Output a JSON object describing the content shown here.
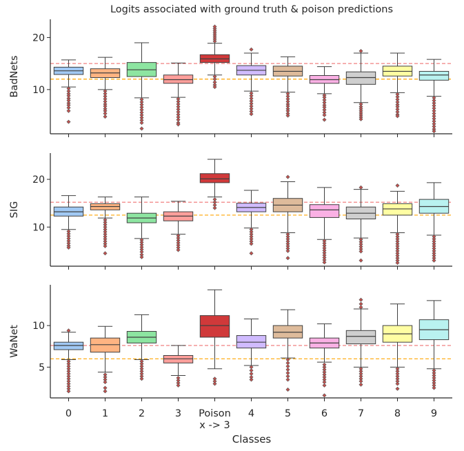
{
  "chart_data": {
    "type": "boxplot",
    "title": "Logits associated with ground truth & poison predictions",
    "xlabel": "Classes",
    "categories": [
      "0",
      "1",
      "2",
      "3",
      "Poison\nx -> 3",
      "4",
      "5",
      "6",
      "7",
      "8",
      "9"
    ],
    "colors": [
      "#a1c9f4",
      "#ffb482",
      "#8de5a1",
      "#ff9f9b",
      "#d0393a",
      "#d0bbff",
      "#debb9b",
      "#fab0e4",
      "#cfcfcf",
      "#fffea3",
      "#b9f2f0"
    ],
    "reference_line_colors": {
      "red": "#f08080",
      "orange": "#ffa500"
    },
    "panels": [
      {
        "ylabel": "BadNets",
        "ylim": [
          1.5,
          23.5
        ],
        "yticks": [
          10,
          20
        ],
        "red_line": 15.0,
        "orange_line": 12.0,
        "boxes": [
          {
            "q1": 12.9,
            "median": 13.6,
            "q3": 14.3,
            "whisker_low": 10.5,
            "whisker_high": 15.7,
            "fliers": [
              10.2,
              9.7,
              9.2,
              8.8,
              8.3,
              7.9,
              7.4,
              7.0,
              6.5,
              5.9,
              3.8
            ]
          },
          {
            "q1": 12.3,
            "median": 13.2,
            "q3": 14.0,
            "whisker_low": 10.0,
            "whisker_high": 16.2,
            "fliers": [
              9.7,
              9.2,
              8.7,
              8.2,
              7.7,
              7.2,
              6.8,
              6.3,
              5.9,
              5.4,
              4.8
            ]
          },
          {
            "q1": 12.5,
            "median": 13.8,
            "q3": 15.2,
            "whisker_low": 8.4,
            "whisker_high": 19.0,
            "fliers": [
              8.1,
              7.6,
              7.1,
              6.6,
              6.1,
              5.6,
              5.1,
              4.6,
              4.1,
              3.6,
              2.5
            ]
          },
          {
            "q1": 11.2,
            "median": 11.9,
            "q3": 12.8,
            "whisker_low": 8.5,
            "whisker_high": 15.1,
            "fliers": [
              8.2,
              7.7,
              7.2,
              6.7,
              6.2,
              5.7,
              5.2,
              4.7,
              4.2,
              3.6,
              3.3
            ]
          },
          {
            "q1": 15.2,
            "median": 15.9,
            "q3": 16.7,
            "whisker_low": 12.8,
            "whisker_high": 18.9,
            "fliers": [
              19.3,
              19.7,
              20.1,
              20.5,
              20.9,
              21.3,
              21.7,
              22.1,
              12.5,
              12.0,
              11.4,
              10.9,
              10.5
            ]
          },
          {
            "q1": 12.8,
            "median": 13.7,
            "q3": 14.6,
            "whisker_low": 9.7,
            "whisker_high": 17.0,
            "fliers": [
              17.7,
              9.3,
              8.8,
              8.3,
              7.8,
              7.3,
              6.8,
              6.3,
              5.8,
              5.3
            ]
          },
          {
            "q1": 12.6,
            "median": 13.5,
            "q3": 14.5,
            "whisker_low": 9.5,
            "whisker_high": 16.3,
            "fliers": [
              9.2,
              8.7,
              8.2,
              7.7,
              7.2,
              6.8,
              6.3,
              5.9,
              5.4,
              5.0
            ]
          },
          {
            "q1": 11.2,
            "median": 11.9,
            "q3": 12.7,
            "whisker_low": 9.2,
            "whisker_high": 14.4,
            "fliers": [
              8.9,
              8.5,
              8.0,
              7.5,
              7.0,
              6.6,
              6.1,
              5.6,
              5.1,
              4.2
            ]
          },
          {
            "q1": 11.0,
            "median": 12.3,
            "q3": 13.4,
            "whisker_low": 7.5,
            "whisker_high": 17.0,
            "fliers": [
              17.4,
              7.2,
              6.7,
              6.3,
              5.9,
              5.5,
              5.1,
              4.7,
              4.3
            ]
          },
          {
            "q1": 12.6,
            "median": 13.5,
            "q3": 14.5,
            "whisker_low": 9.4,
            "whisker_high": 17.0,
            "fliers": [
              9.1,
              8.6,
              8.1,
              7.6,
              7.1,
              6.7,
              6.2,
              5.7,
              5.2,
              4.9
            ]
          },
          {
            "q1": 11.8,
            "median": 12.8,
            "q3": 13.5,
            "whisker_low": 8.7,
            "whisker_high": 15.8,
            "fliers": [
              8.4,
              7.9,
              7.4,
              6.9,
              6.4,
              5.9,
              5.4,
              4.9,
              4.4,
              3.9,
              3.4,
              2.9,
              2.4,
              2.0
            ]
          }
        ]
      },
      {
        "ylabel": "SIG",
        "ylim": [
          1.8,
          25.5
        ],
        "yticks": [
          10,
          20
        ],
        "red_line": 15.2,
        "orange_line": 12.5,
        "boxes": [
          {
            "q1": 12.3,
            "median": 13.2,
            "q3": 14.2,
            "whisker_low": 9.5,
            "whisker_high": 16.6,
            "fliers": [
              9.1,
              8.6,
              8.1,
              7.6,
              7.1,
              6.6,
              6.1,
              5.7
            ]
          },
          {
            "q1": 13.6,
            "median": 14.3,
            "q3": 14.9,
            "whisker_low": 11.9,
            "whisker_high": 16.3,
            "fliers": [
              11.5,
              11.0,
              10.5,
              10.0,
              9.5,
              9.0,
              8.5,
              8.0,
              7.5,
              7.0,
              6.5,
              6.0,
              4.5
            ]
          },
          {
            "q1": 10.9,
            "median": 11.9,
            "q3": 12.9,
            "whisker_low": 7.6,
            "whisker_high": 16.3,
            "fliers": [
              7.3,
              6.8,
              6.3,
              5.8,
              5.3,
              4.8,
              4.2,
              3.7
            ]
          },
          {
            "q1": 11.3,
            "median": 12.3,
            "q3": 13.2,
            "whisker_low": 8.5,
            "whisker_high": 15.4,
            "fliers": [
              8.2,
              7.7,
              7.2,
              6.7,
              6.2,
              5.7,
              5.2
            ]
          },
          {
            "q1": 19.3,
            "median": 20.1,
            "q3": 21.2,
            "whisker_low": 16.3,
            "whisker_high": 24.2,
            "fliers": [
              15.8,
              15.2,
              14.6,
              14.0
            ]
          },
          {
            "q1": 13.2,
            "median": 14.1,
            "q3": 15.0,
            "whisker_low": 9.8,
            "whisker_high": 17.7,
            "fliers": [
              9.5,
              9.0,
              8.5,
              8.0,
              7.5,
              7.0,
              6.5,
              4.5
            ]
          },
          {
            "q1": 13.2,
            "median": 14.6,
            "q3": 16.0,
            "whisker_low": 8.8,
            "whisker_high": 19.5,
            "fliers": [
              20.5,
              8.5,
              8.0,
              7.5,
              7.0,
              6.5,
              6.0,
              5.5,
              5.0,
              3.5
            ]
          },
          {
            "q1": 12.0,
            "median": 13.6,
            "q3": 14.7,
            "whisker_low": 7.4,
            "whisker_high": 18.3,
            "fliers": [
              7.1,
              6.6,
              6.1,
              5.6,
              5.1,
              4.6,
              4.1,
              3.6,
              3.1,
              2.6
            ]
          },
          {
            "q1": 11.7,
            "median": 12.9,
            "q3": 14.2,
            "whisker_low": 7.7,
            "whisker_high": 17.9,
            "fliers": [
              18.3,
              7.4,
              6.9,
              6.4,
              5.9,
              5.4,
              4.9,
              3.0
            ]
          },
          {
            "q1": 12.5,
            "median": 13.8,
            "q3": 14.9,
            "whisker_low": 8.8,
            "whisker_high": 17.5,
            "fliers": [
              18.7,
              8.5,
              8.0,
              7.5,
              7.0,
              6.5,
              6.0,
              5.5,
              5.0,
              4.5,
              4.0,
              3.5,
              3.0,
              2.5
            ]
          },
          {
            "q1": 12.9,
            "median": 14.3,
            "q3": 15.8,
            "whisker_low": 8.3,
            "whisker_high": 19.3,
            "fliers": [
              8.0,
              7.5,
              7.0,
              6.5,
              6.0,
              5.5,
              5.0,
              4.5,
              4.0,
              3.5,
              3.0
            ]
          }
        ]
      },
      {
        "ylabel": "WaNet",
        "ylim": [
          1.3,
          14.9
        ],
        "yticks": [
          5,
          10
        ],
        "red_line": 7.6,
        "orange_line": 6.0,
        "boxes": [
          {
            "q1": 7.1,
            "median": 7.6,
            "q3": 8.0,
            "whisker_low": 5.9,
            "whisker_high": 9.2,
            "fliers": [
              9.4,
              5.7,
              5.4,
              5.1,
              4.8,
              4.5,
              4.2,
              3.9,
              3.6,
              3.3,
              3.0,
              2.7,
              2.4,
              2.1
            ]
          },
          {
            "q1": 6.8,
            "median": 7.7,
            "q3": 8.5,
            "whisker_low": 4.4,
            "whisker_high": 9.9,
            "fliers": [
              4.1,
              3.8,
              3.5,
              3.2,
              2.5,
              2.1
            ]
          },
          {
            "q1": 7.9,
            "median": 8.6,
            "q3": 9.3,
            "whisker_low": 5.9,
            "whisker_high": 11.3,
            "fliers": [
              5.7,
              5.4,
              5.1,
              4.8,
              4.5,
              4.2,
              3.9,
              3.6
            ]
          },
          {
            "q1": 5.5,
            "median": 6.0,
            "q3": 6.4,
            "whisker_low": 4.0,
            "whisker_high": 7.6,
            "fliers": [
              3.7,
              3.4,
              3.1,
              2.8
            ]
          },
          {
            "q1": 8.6,
            "median": 10.0,
            "q3": 11.2,
            "whisker_low": 4.8,
            "whisker_high": 14.3,
            "fliers": [
              3.6,
              3.3,
              3.0
            ]
          },
          {
            "q1": 7.3,
            "median": 8.0,
            "q3": 8.8,
            "whisker_low": 5.2,
            "whisker_high": 10.8,
            "fliers": [
              5.0,
              4.6,
              4.2,
              3.8,
              3.5
            ]
          },
          {
            "q1": 8.5,
            "median": 9.2,
            "q3": 10.0,
            "whisker_low": 6.1,
            "whisker_high": 11.9,
            "fliers": [
              5.9,
              5.5,
              5.1,
              4.7,
              4.3,
              3.9,
              3.5,
              2.3
            ]
          },
          {
            "q1": 7.3,
            "median": 7.9,
            "q3": 8.5,
            "whisker_low": 5.6,
            "whisker_high": 10.2,
            "fliers": [
              5.3,
              5.0,
              4.7,
              4.4,
              4.1,
              3.8,
              3.5,
              3.2,
              2.8,
              1.6
            ]
          },
          {
            "q1": 7.8,
            "median": 8.7,
            "q3": 9.4,
            "whisker_low": 5.0,
            "whisker_high": 12.0,
            "fliers": [
              13.1,
              12.6,
              12.2,
              4.8,
              4.5,
              4.2,
              3.9,
              3.6,
              3.3,
              2.9
            ]
          },
          {
            "q1": 8.0,
            "median": 9.0,
            "q3": 10.0,
            "whisker_low": 5.0,
            "whisker_high": 12.6,
            "fliers": [
              4.8,
              4.5,
              4.2,
              3.9,
              3.6,
              3.3,
              3.0,
              2.4
            ]
          },
          {
            "q1": 8.3,
            "median": 9.5,
            "q3": 10.7,
            "whisker_low": 4.8,
            "whisker_high": 13.0,
            "fliers": [
              4.6,
              4.3,
              4.0,
              3.7,
              3.4,
              3.1,
              2.8,
              2.5
            ]
          }
        ]
      }
    ]
  }
}
